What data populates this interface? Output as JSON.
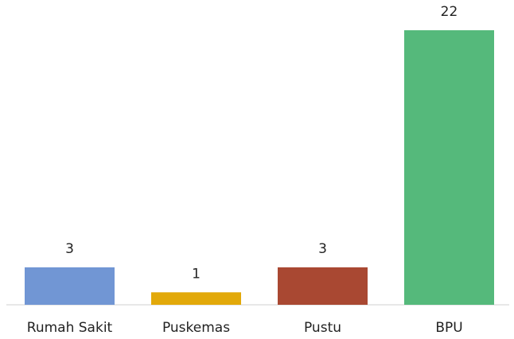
{
  "chart_data": {
    "type": "bar",
    "categories": [
      "Rumah Sakit",
      "Puskemas",
      "Pustu",
      "BPU"
    ],
    "values": [
      3,
      1,
      3,
      22
    ],
    "colors": [
      "#7196d4",
      "#e2a90a",
      "#a94832",
      "#55b97b"
    ],
    "ylim": [
      0,
      22
    ]
  }
}
